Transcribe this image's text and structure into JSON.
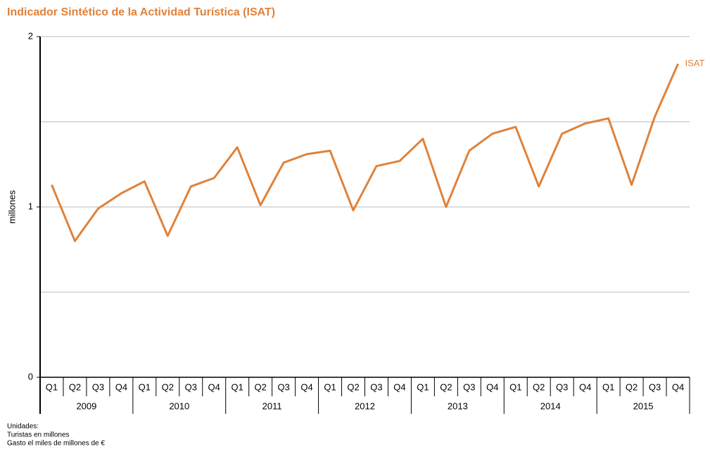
{
  "chart_data": {
    "type": "line",
    "title": "Indicador Sintético de la Actividad Turística (ISAT)",
    "y_label": "millones",
    "categories": [
      "Q1",
      "Q2",
      "Q3",
      "Q4",
      "Q1",
      "Q2",
      "Q3",
      "Q4",
      "Q1",
      "Q2",
      "Q3",
      "Q4",
      "Q1",
      "Q2",
      "Q3",
      "Q4",
      "Q1",
      "Q2",
      "Q3",
      "Q4",
      "Q1",
      "Q2",
      "Q3",
      "Q4",
      "Q1",
      "Q2",
      "Q3",
      "Q4"
    ],
    "year_groups": [
      "2009",
      "2010",
      "2011",
      "2012",
      "2013",
      "2014",
      "2015"
    ],
    "series": [
      {
        "name": "ISAT",
        "color": "#e0823a",
        "values": [
          1.13,
          0.8,
          0.99,
          1.08,
          1.15,
          0.83,
          1.12,
          1.17,
          1.35,
          1.01,
          1.26,
          1.31,
          1.33,
          0.98,
          1.24,
          1.27,
          1.4,
          1.0,
          1.33,
          1.43,
          1.47,
          1.12,
          1.43,
          1.49,
          1.52,
          1.13,
          1.53,
          1.84
        ]
      }
    ],
    "ylim": [
      0,
      2
    ],
    "yticks": [
      0,
      1,
      2
    ],
    "minor_grid": [
      0.5,
      1.5
    ],
    "grid": true,
    "notes": [
      "Unidades:",
      "Turistas en millones",
      "Gasto el miles de millones de €"
    ]
  }
}
